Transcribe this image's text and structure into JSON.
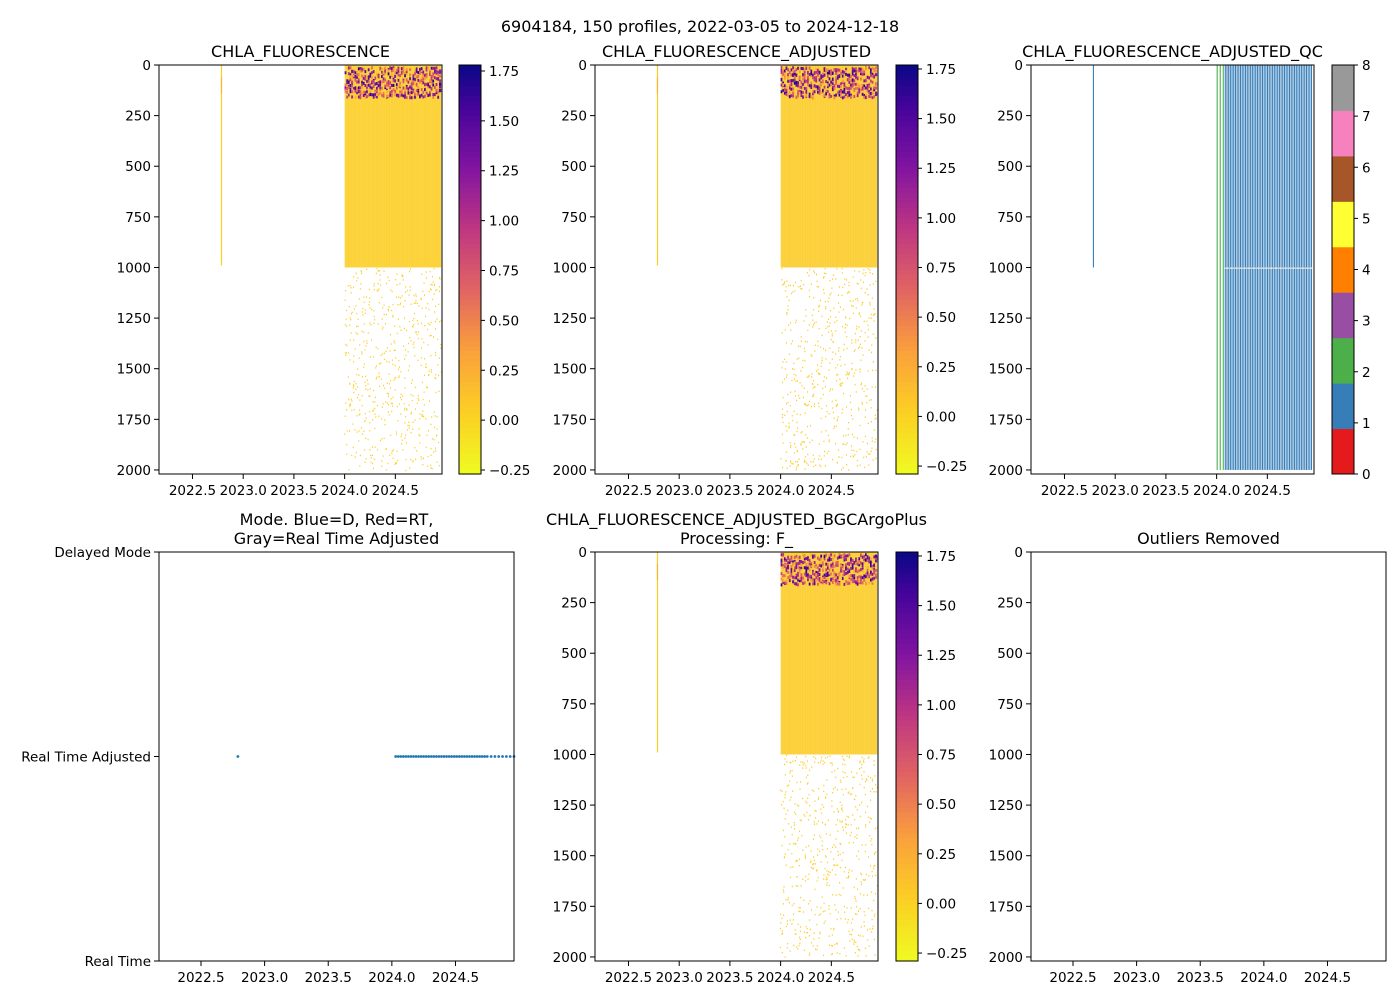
{
  "figure_title": "6904184, 150 profiles, 2022-03-05 to 2024-12-18",
  "chart_data": [
    {
      "id": "chla",
      "type": "heatmap",
      "title": "CHLA_FLUORESCENCE",
      "xlabel": "",
      "ylabel": "",
      "xlim": [
        2022.17,
        2024.96
      ],
      "ylim": [
        2020,
        0
      ],
      "xticks": [
        2022.5,
        2023.0,
        2023.5,
        2024.0,
        2024.5
      ],
      "xtick_labels": [
        "2022.5",
        "2023.0",
        "2023.5",
        "2024.0",
        "2024.5"
      ],
      "yticks": [
        0,
        250,
        500,
        750,
        1000,
        1250,
        1500,
        1750,
        2000
      ],
      "ytick_labels": [
        "0",
        "250",
        "500",
        "750",
        "1000",
        "1250",
        "1500",
        "1750",
        "2000"
      ],
      "colorbar": {
        "colormap": "plasma_r",
        "range": [
          -0.27,
          1.78
        ],
        "ticks": [
          1.75,
          1.5,
          1.25,
          1.0,
          0.75,
          0.5,
          0.25,
          0.0,
          -0.25
        ],
        "tick_labels": [
          "1.75",
          "1.50",
          "1.25",
          "1.00",
          "0.75",
          "0.50",
          "0.25",
          "0.00",
          "−0.25"
        ]
      },
      "profiles": [
        {
          "date": 2022.78,
          "depth_max": 990,
          "value_range": [
            0.0,
            0.05
          ]
        },
        {
          "date_start": 2024.0,
          "date_end": 2024.93,
          "count": 58,
          "depth_max": 1000,
          "deep_sparse_to": 2000,
          "value_range": [
            0.0,
            1.75
          ],
          "surface_peak_depth": [
            0,
            150
          ]
        }
      ]
    },
    {
      "id": "chla_adj",
      "type": "heatmap",
      "title": "CHLA_FLUORESCENCE_ADJUSTED",
      "xlim": [
        2022.17,
        2024.96
      ],
      "ylim": [
        2020,
        0
      ],
      "xticks": [
        2022.5,
        2023.0,
        2023.5,
        2024.0,
        2024.5
      ],
      "xtick_labels": [
        "2022.5",
        "2023.0",
        "2023.5",
        "2024.0",
        "2024.5"
      ],
      "yticks": [
        0,
        250,
        500,
        750,
        1000,
        1250,
        1500,
        1750,
        2000
      ],
      "ytick_labels": [
        "0",
        "250",
        "500",
        "750",
        "1000",
        "1250",
        "1500",
        "1750",
        "2000"
      ],
      "colorbar": {
        "colormap": "plasma_r",
        "range": [
          -0.29,
          1.77
        ],
        "ticks": [
          1.75,
          1.5,
          1.25,
          1.0,
          0.75,
          0.5,
          0.25,
          0.0,
          -0.25
        ],
        "tick_labels": [
          "1.75",
          "1.50",
          "1.25",
          "1.00",
          "0.75",
          "0.50",
          "0.25",
          "0.00",
          "−0.25"
        ]
      },
      "profiles": [
        {
          "date": 2022.78,
          "depth_max": 990,
          "value_range": [
            0.0,
            0.1
          ]
        },
        {
          "date_start": 2024.0,
          "date_end": 2024.93,
          "count": 58,
          "depth_max": 1000,
          "deep_sparse_to": 2000,
          "value_range": [
            0.0,
            1.75
          ]
        }
      ]
    },
    {
      "id": "chla_qc",
      "type": "heatmap",
      "title": "CHLA_FLUORESCENCE_ADJUSTED_QC",
      "xlim": [
        2022.17,
        2024.96
      ],
      "ylim": [
        2020,
        0
      ],
      "xticks": [
        2022.5,
        2023.0,
        2023.5,
        2024.0,
        2024.5
      ],
      "xtick_labels": [
        "2022.5",
        "2023.0",
        "2023.5",
        "2024.0",
        "2024.5"
      ],
      "yticks": [
        0,
        250,
        500,
        750,
        1000,
        1250,
        1500,
        1750,
        2000
      ],
      "ytick_labels": [
        "0",
        "250",
        "500",
        "750",
        "1000",
        "1250",
        "1500",
        "1750",
        "2000"
      ],
      "colorbar": {
        "colormap": "qc_flags",
        "range": [
          0,
          8
        ],
        "ticks": [
          8,
          7,
          6,
          5,
          4,
          3,
          2,
          1,
          0
        ],
        "tick_labels": [
          "8",
          "7",
          "6",
          "5",
          "4",
          "3",
          "2",
          "1",
          "0"
        ],
        "colors": [
          "#e41a1c",
          "#377eb8",
          "#4daf4a",
          "#984ea3",
          "#ff7f00",
          "#ffff33",
          "#a65628",
          "#f781bf",
          "#999999"
        ]
      },
      "profiles": [
        {
          "date": 2022.78,
          "depth_max": 1000,
          "qc": 1
        },
        {
          "date_start": 2024.0,
          "date_end": 2024.06,
          "count": 3,
          "depth_max": 2000,
          "qc": 2
        },
        {
          "date_start": 2024.08,
          "date_end": 2024.93,
          "count": 52,
          "depth_max": 2000,
          "qc": 1
        }
      ]
    },
    {
      "id": "mode",
      "type": "scatter",
      "title": "Mode. Blue=D, Red=RT,\nGray=Real Time Adjusted",
      "title_lines": [
        "Mode. Blue=D, Red=RT,",
        "Gray=Real Time Adjusted"
      ],
      "xlim": [
        2022.17,
        2024.96
      ],
      "xticks": [
        2022.5,
        2023.0,
        2023.5,
        2024.0,
        2024.5
      ],
      "xtick_labels": [
        "2022.5",
        "2023.0",
        "2023.5",
        "2024.0",
        "2024.5"
      ],
      "ylim": [
        0,
        2
      ],
      "yticks": [
        2,
        1,
        0
      ],
      "ytick_labels": [
        "Delayed Mode",
        "Real Time Adjusted",
        "Real Time"
      ],
      "points": {
        "y": 1,
        "x": [
          2022.79,
          2024.03,
          2024.05,
          2024.07,
          2024.09,
          2024.11,
          2024.13,
          2024.15,
          2024.17,
          2024.19,
          2024.21,
          2024.23,
          2024.25,
          2024.27,
          2024.29,
          2024.31,
          2024.33,
          2024.35,
          2024.37,
          2024.39,
          2024.41,
          2024.43,
          2024.45,
          2024.47,
          2024.49,
          2024.51,
          2024.53,
          2024.55,
          2024.57,
          2024.59,
          2024.61,
          2024.63,
          2024.65,
          2024.67,
          2024.69,
          2024.71,
          2024.73,
          2024.75,
          2024.78,
          2024.81,
          2024.84,
          2024.87,
          2024.9,
          2024.93,
          2024.96
        ]
      }
    },
    {
      "id": "chla_bgc",
      "type": "heatmap",
      "title": "CHLA_FLUORESCENCE_ADJUSTED_BGCArgoPlus\nProcessing: F_",
      "title_lines": [
        "CHLA_FLUORESCENCE_ADJUSTED_BGCArgoPlus",
        "Processing: F_"
      ],
      "xlim": [
        2022.17,
        2024.96
      ],
      "ylim": [
        2020,
        0
      ],
      "xticks": [
        2022.5,
        2023.0,
        2023.5,
        2024.0,
        2024.5
      ],
      "xtick_labels": [
        "2022.5",
        "2023.0",
        "2023.5",
        "2024.0",
        "2024.5"
      ],
      "yticks": [
        0,
        250,
        500,
        750,
        1000,
        1250,
        1500,
        1750,
        2000
      ],
      "ytick_labels": [
        "0",
        "250",
        "500",
        "750",
        "1000",
        "1250",
        "1500",
        "1750",
        "2000"
      ],
      "colorbar": {
        "colormap": "plasma_r",
        "range": [
          -0.29,
          1.77
        ],
        "ticks": [
          1.75,
          1.5,
          1.25,
          1.0,
          0.75,
          0.5,
          0.25,
          0.0,
          -0.25
        ],
        "tick_labels": [
          "1.75",
          "1.50",
          "1.25",
          "1.00",
          "0.75",
          "0.50",
          "0.25",
          "0.00",
          "−0.25"
        ]
      },
      "profiles": [
        {
          "date": 2022.78,
          "depth_max": 990,
          "value_range": [
            0.0,
            0.1
          ]
        },
        {
          "date_start": 2024.0,
          "date_end": 2024.93,
          "count": 58,
          "depth_max": 1000,
          "deep_sparse_to": 2000,
          "value_range": [
            0.0,
            1.75
          ]
        }
      ]
    },
    {
      "id": "outliers",
      "type": "heatmap",
      "title": "Outliers Removed",
      "xlim": [
        2022.17,
        2024.96
      ],
      "ylim": [
        2020,
        0
      ],
      "xticks": [
        2022.5,
        2023.0,
        2023.5,
        2024.0,
        2024.5
      ],
      "xtick_labels": [
        "2022.5",
        "2023.0",
        "2023.5",
        "2024.0",
        "2024.5"
      ],
      "yticks": [
        0,
        250,
        500,
        750,
        1000,
        1250,
        1500,
        1750,
        2000
      ],
      "ytick_labels": [
        "0",
        "250",
        "500",
        "750",
        "1000",
        "1250",
        "1500",
        "1750",
        "2000"
      ],
      "profiles": []
    }
  ]
}
